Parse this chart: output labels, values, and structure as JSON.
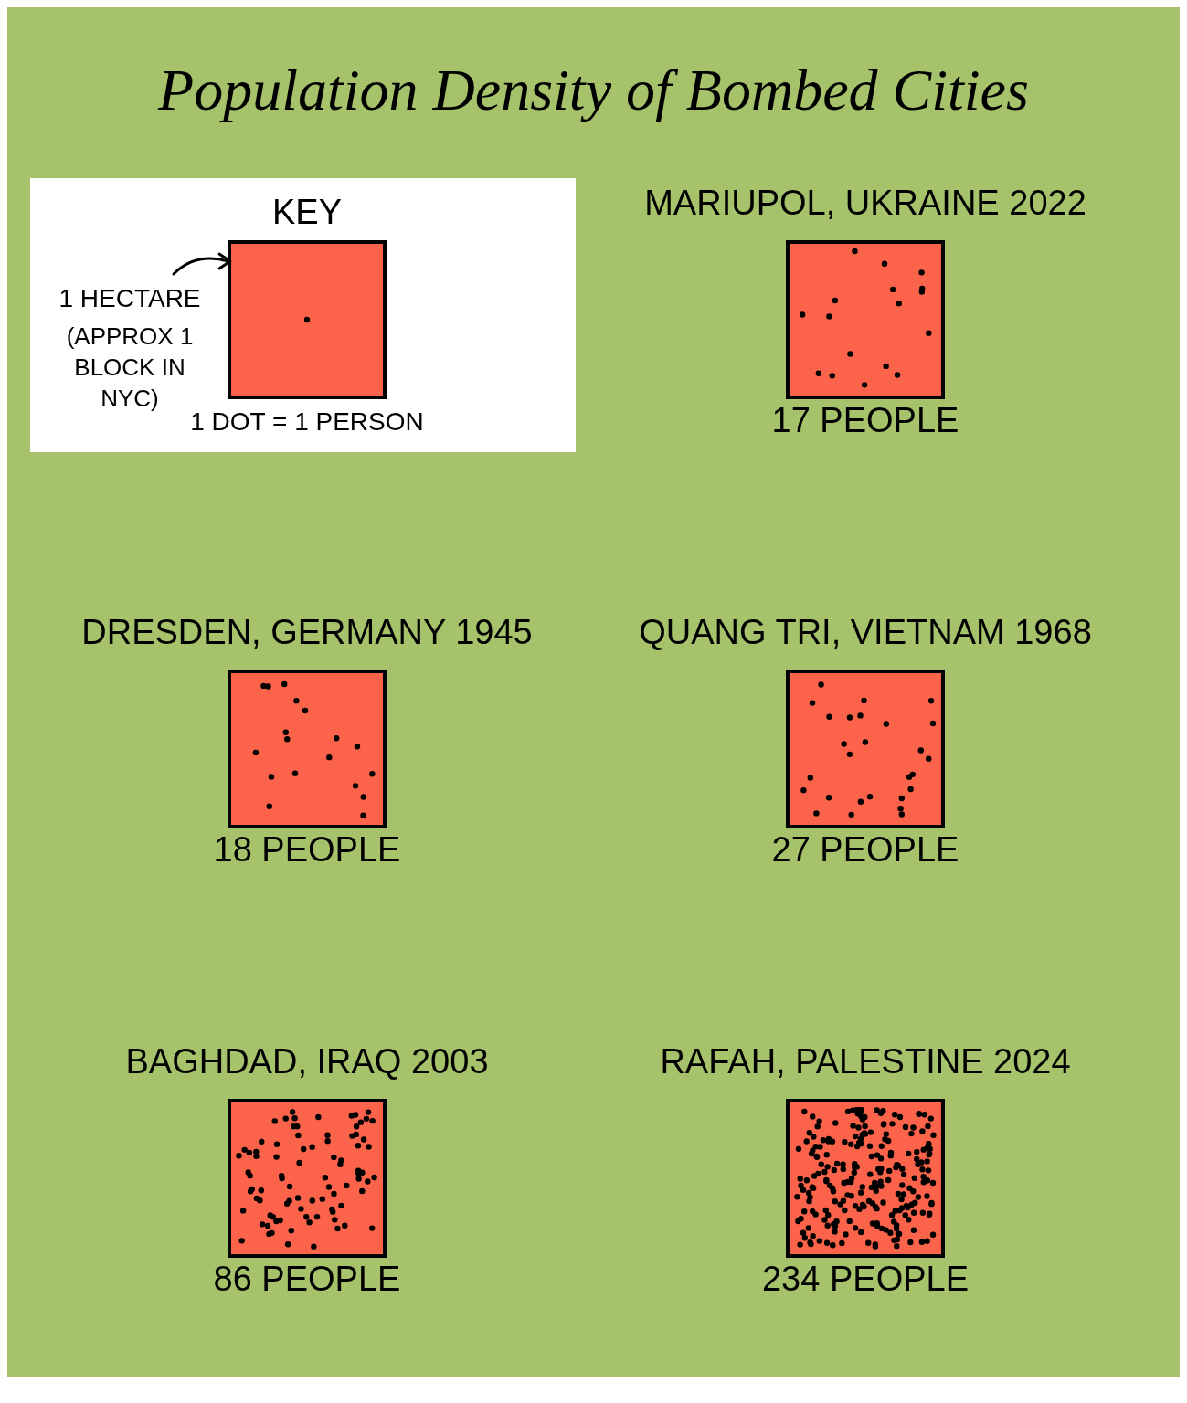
{
  "chart_data": {
    "type": "other",
    "title": "Population Density of Bombed Cities",
    "categories": [
      "MARIUPOL, UKRAINE 2022",
      "DRESDEN, GERMANY 1945",
      "QUANG TRI, VIETNAM 1968",
      "BAGHDAD, IRAQ 2003",
      "RAFAH, PALESTINE 2024"
    ],
    "values": [
      17,
      18,
      27,
      86,
      234
    ],
    "value_labels": [
      "17 PEOPLE",
      "18 PEOPLE",
      "27 PEOPLE",
      "86 PEOPLE",
      "234 PEOPLE"
    ],
    "color": "#fc634b",
    "annotations": [
      "KEY",
      "1 HECTARE",
      "(APPROX 1 BLOCK IN NYC)",
      "1 DOT = 1 PERSON"
    ]
  }
}
